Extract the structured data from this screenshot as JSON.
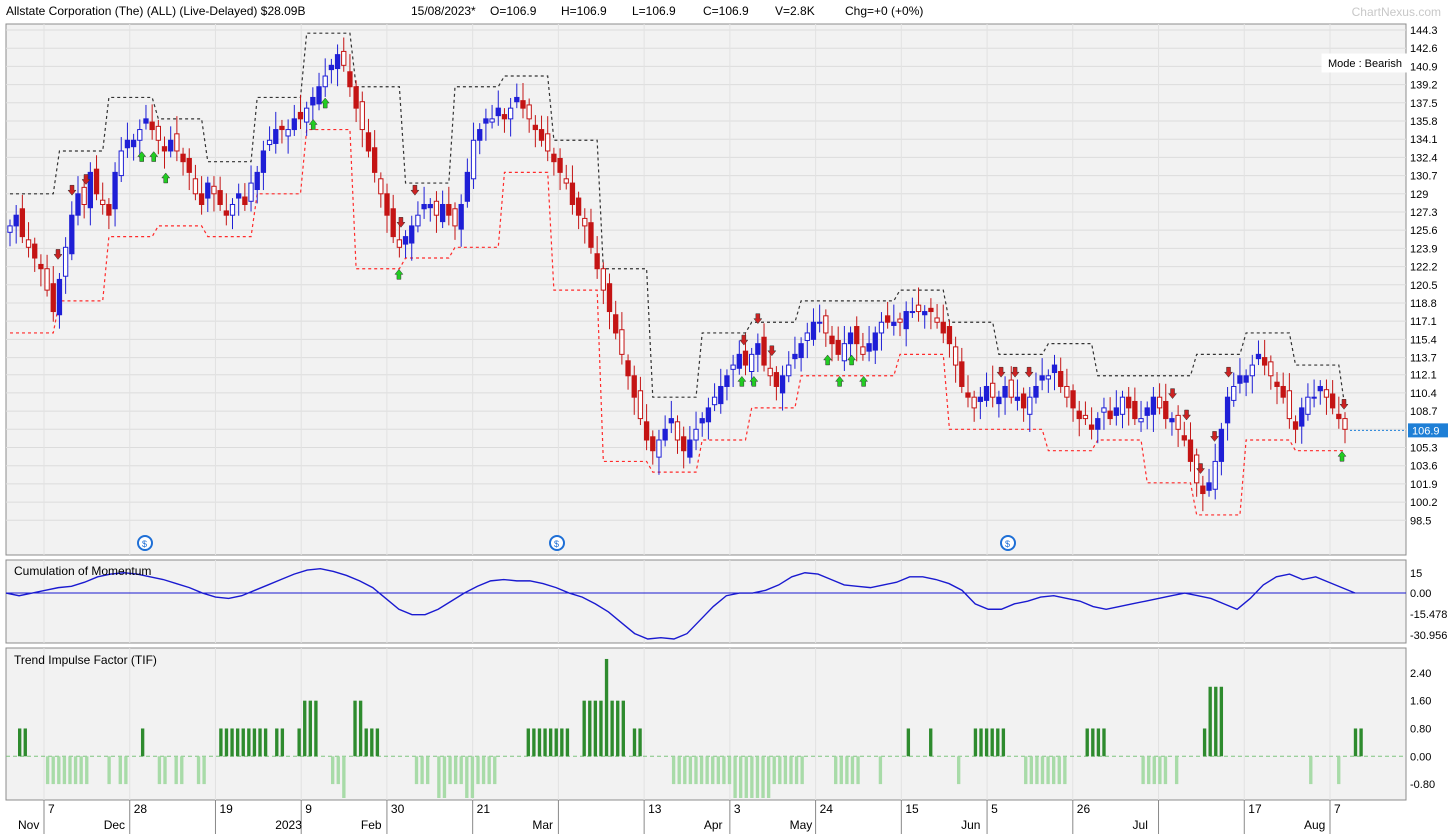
{
  "header": {
    "title": "Allstate Corporation (The) (ALL) (Live-Delayed) $28.09B",
    "date": "15/08/2023*",
    "open": "O=106.9",
    "high": "H=106.9",
    "low": "L=106.9",
    "close": "C=106.9",
    "volume": "V=2.8K",
    "change": "Chg=+0 (+0%)",
    "watermark": "ChartNexus.com"
  },
  "mode_label": "Mode : Bearish",
  "last_price_label": "106.9",
  "colors": {
    "up_candle": "#1f1fd6",
    "down_candle": "#c41414",
    "stop_upper": "#333333",
    "stop_lower": "#ff2a2a",
    "momentum_line": "#1a1ad0",
    "tif_positive": "#2e8b2e",
    "tif_negative": "#a8dba8",
    "signal_up": "#22cc22",
    "signal_down": "#cc2222",
    "price_tag": "#1e7fd6"
  },
  "chart_data": [
    {
      "type": "candlestick",
      "ylim": [
        97.5,
        144.3
      ],
      "y_ticks": [
        "144.3",
        "142.6",
        "140.9",
        "139.2",
        "137.5",
        "135.8",
        "134.1",
        "132.4",
        "130.7",
        "129",
        "127.3",
        "125.6",
        "123.9",
        "122.2",
        "120.5",
        "118.8",
        "117.1",
        "115.4",
        "113.7",
        "112.1",
        "110.4",
        "108.7",
        "107",
        "105.3",
        "103.6",
        "101.9",
        "100.2",
        "98.5"
      ],
      "x_labels": [
        {
          "day": "7",
          "month": "Nov"
        },
        {
          "day": "28",
          "month": "Dec"
        },
        {
          "day": "19",
          "month": ""
        },
        {
          "day": "9",
          "month": "2023"
        },
        {
          "day": "30",
          "month": "Feb"
        },
        {
          "day": "21",
          "month": ""
        },
        {
          "day": "",
          "month": "Mar"
        },
        {
          "day": "13",
          "month": ""
        },
        {
          "day": "3",
          "month": "Apr"
        },
        {
          "day": "24",
          "month": "May"
        },
        {
          "day": "15",
          "month": ""
        },
        {
          "day": "5",
          "month": "Jun"
        },
        {
          "day": "26",
          "month": ""
        },
        {
          "day": "",
          "month": "Jul"
        },
        {
          "day": "17",
          "month": ""
        },
        {
          "day": "7",
          "month": "Aug"
        }
      ],
      "close_path": [
        126,
        127,
        125,
        124,
        123,
        122,
        120,
        118,
        121,
        124,
        127,
        129,
        128,
        131,
        129,
        128,
        127,
        131,
        133,
        134,
        134,
        135,
        136,
        135,
        134,
        133,
        134,
        133,
        132,
        131,
        129,
        128,
        130,
        129,
        128,
        127,
        128,
        129,
        128,
        130,
        131,
        133,
        134,
        135,
        135,
        135,
        136,
        136,
        137,
        138,
        139,
        140,
        141,
        142,
        141,
        139,
        137,
        135,
        133,
        131,
        129,
        127,
        125,
        124,
        125,
        126,
        127,
        128,
        128,
        127,
        128,
        127,
        126,
        128,
        131,
        134,
        135,
        136,
        136,
        137,
        136,
        137,
        138,
        137,
        136,
        135,
        134,
        133,
        132,
        131,
        130,
        128,
        127,
        126,
        124,
        122,
        120,
        118,
        116,
        114,
        112,
        110,
        108,
        106,
        105,
        106,
        107,
        108,
        106,
        105,
        106,
        107,
        108,
        109,
        110,
        111,
        112,
        113,
        114,
        113,
        114,
        115,
        113,
        112,
        111,
        112,
        113,
        114,
        115,
        116,
        117,
        117,
        116,
        115,
        114,
        115,
        116,
        115,
        114,
        115,
        116,
        117,
        117,
        117,
        117,
        118,
        118,
        118,
        118,
        118,
        117,
        116,
        115,
        113,
        111,
        110,
        109,
        110,
        111,
        110,
        110,
        111,
        110,
        110,
        109,
        110,
        111,
        112,
        112,
        113,
        111,
        110,
        109,
        108,
        108,
        107,
        108,
        109,
        108,
        109,
        110,
        109,
        108,
        108,
        109,
        110,
        109,
        108,
        108,
        107,
        106,
        104,
        102,
        101,
        102,
        104,
        107,
        110,
        111,
        112,
        112,
        113,
        114,
        113,
        112,
        111,
        110,
        108,
        107,
        109,
        110,
        110,
        111,
        110,
        109,
        108,
        107
      ],
      "signal_arrows_up": [
        "Dec",
        "Dec",
        "Dec",
        "2023",
        "2023",
        "Feb",
        "Apr",
        "Apr",
        "May",
        "May",
        "May",
        "May",
        "Aug"
      ],
      "signal_arrows_down": [
        "Nov",
        "Nov",
        "Nov",
        "Feb",
        "Feb",
        "Apr",
        "Apr",
        "Apr",
        "Jun",
        "Jun",
        "Jun",
        "Jul",
        "Jul",
        "Jul",
        "Jul",
        "Jul",
        "Aug"
      ],
      "dividend_markers": [
        "Dec",
        "Feb",
        "May"
      ]
    },
    {
      "type": "line",
      "title": "Cumulation of Momentum",
      "y_ticks": [
        "15",
        "0.00",
        "-15.478",
        "-30.956"
      ],
      "ylim": [
        -34,
        20
      ],
      "values": [
        0,
        -2,
        0,
        2,
        4,
        5,
        8,
        12,
        14,
        15,
        14,
        12,
        10,
        7,
        4,
        0,
        -3,
        -4,
        -2,
        2,
        6,
        10,
        14,
        17,
        18,
        16,
        13,
        9,
        4,
        -4,
        -12,
        -16,
        -16,
        -12,
        -6,
        0,
        5,
        9,
        10,
        9,
        9,
        7,
        4,
        0,
        -3,
        -8,
        -14,
        -22,
        -30,
        -34,
        -33,
        -34,
        -30,
        -20,
        -10,
        -2,
        0,
        0,
        2,
        6,
        12,
        15,
        14,
        10,
        6,
        5,
        4,
        6,
        8,
        12,
        12,
        10,
        7,
        2,
        -8,
        -12,
        -12,
        -8,
        -6,
        -3,
        -2,
        -4,
        -6,
        -10,
        -12,
        -10,
        -8,
        -6,
        -4,
        -2,
        0,
        -2,
        -4,
        -8,
        -12,
        -4,
        6,
        12,
        14,
        10,
        12,
        8,
        4,
        0
      ],
      "zero_line": 0
    },
    {
      "type": "bar",
      "title": "Trend Impulse Factor (TIF)",
      "y_ticks": [
        "2.40",
        "1.60",
        "0.80",
        "0.00",
        "-0.80"
      ],
      "ylim": [
        -1.2,
        3.0
      ],
      "values": [
        0.8,
        0.8,
        0,
        0,
        0,
        -0.8,
        -0.8,
        -0.8,
        -0.8,
        -0.8,
        -0.8,
        -0.8,
        -0.8,
        0,
        0,
        0,
        -0.8,
        0,
        -0.8,
        -0.8,
        0,
        0,
        0.8,
        0,
        0,
        -0.8,
        -0.8,
        0,
        -0.8,
        -0.8,
        0,
        0,
        -0.8,
        -0.8,
        0,
        0,
        0.8,
        0.8,
        0.8,
        0.8,
        0.8,
        0.8,
        0.8,
        0.8,
        0.8,
        0,
        0.8,
        0.8,
        0,
        0,
        0.8,
        1.6,
        1.6,
        1.6,
        0,
        0,
        -0.8,
        -0.8,
        -1.2,
        0,
        1.6,
        1.6,
        0.8,
        0.8,
        0.8,
        0,
        0,
        0,
        0,
        0,
        0,
        -0.8,
        -0.8,
        -0.8,
        0,
        -1.2,
        -1.2,
        -0.8,
        -0.8,
        -0.8,
        -1.2,
        -1.2,
        -0.8,
        -0.8,
        -0.8,
        -0.8,
        0,
        0,
        0,
        0,
        0,
        0.8,
        0.8,
        0.8,
        0.8,
        0.8,
        0.8,
        0.8,
        0.8,
        0,
        0,
        1.6,
        1.6,
        1.6,
        1.6,
        2.8,
        1.6,
        1.6,
        1.6,
        0,
        0.8,
        0.8,
        0,
        0,
        0,
        0,
        0,
        -0.8,
        -0.8,
        -0.8,
        -0.8,
        -0.8,
        -0.8,
        -0.8,
        -0.8,
        -0.8,
        -0.8,
        -0.8,
        -1.2,
        -1.2,
        -1.2,
        -1.2,
        -1.2,
        -1.2,
        -1.2,
        -0.8,
        -0.8,
        -0.8,
        -0.8,
        -0.8,
        -0.8,
        0,
        0,
        0,
        0,
        0,
        -0.8,
        -0.8,
        -0.8,
        -0.8,
        -0.8,
        0,
        0,
        0,
        -0.8,
        0,
        0,
        0,
        0,
        0.8,
        0,
        0,
        0,
        0.8,
        0,
        0,
        0,
        0,
        -0.8,
        0,
        0,
        0.8,
        0.8,
        0.8,
        0.8,
        0.8,
        0.8,
        0,
        0,
        0,
        -0.8,
        -0.8,
        -0.8,
        -0.8,
        -0.8,
        -0.8,
        -0.8,
        -0.8,
        0,
        0,
        0,
        0.8,
        0.8,
        0.8,
        0.8,
        0,
        0,
        0,
        0,
        0,
        0,
        -0.8,
        -0.8,
        -0.8,
        -0.8,
        -0.8,
        0,
        -0.8,
        0,
        0,
        0,
        0,
        0.8,
        2.0,
        2.0,
        2.0,
        0,
        0,
        0,
        0,
        0,
        0,
        0,
        0,
        0,
        0,
        0,
        0,
        0,
        0,
        0,
        -0.8,
        0,
        0,
        0,
        0,
        -0.8,
        0,
        0,
        0.8,
        0.8
      ]
    }
  ]
}
